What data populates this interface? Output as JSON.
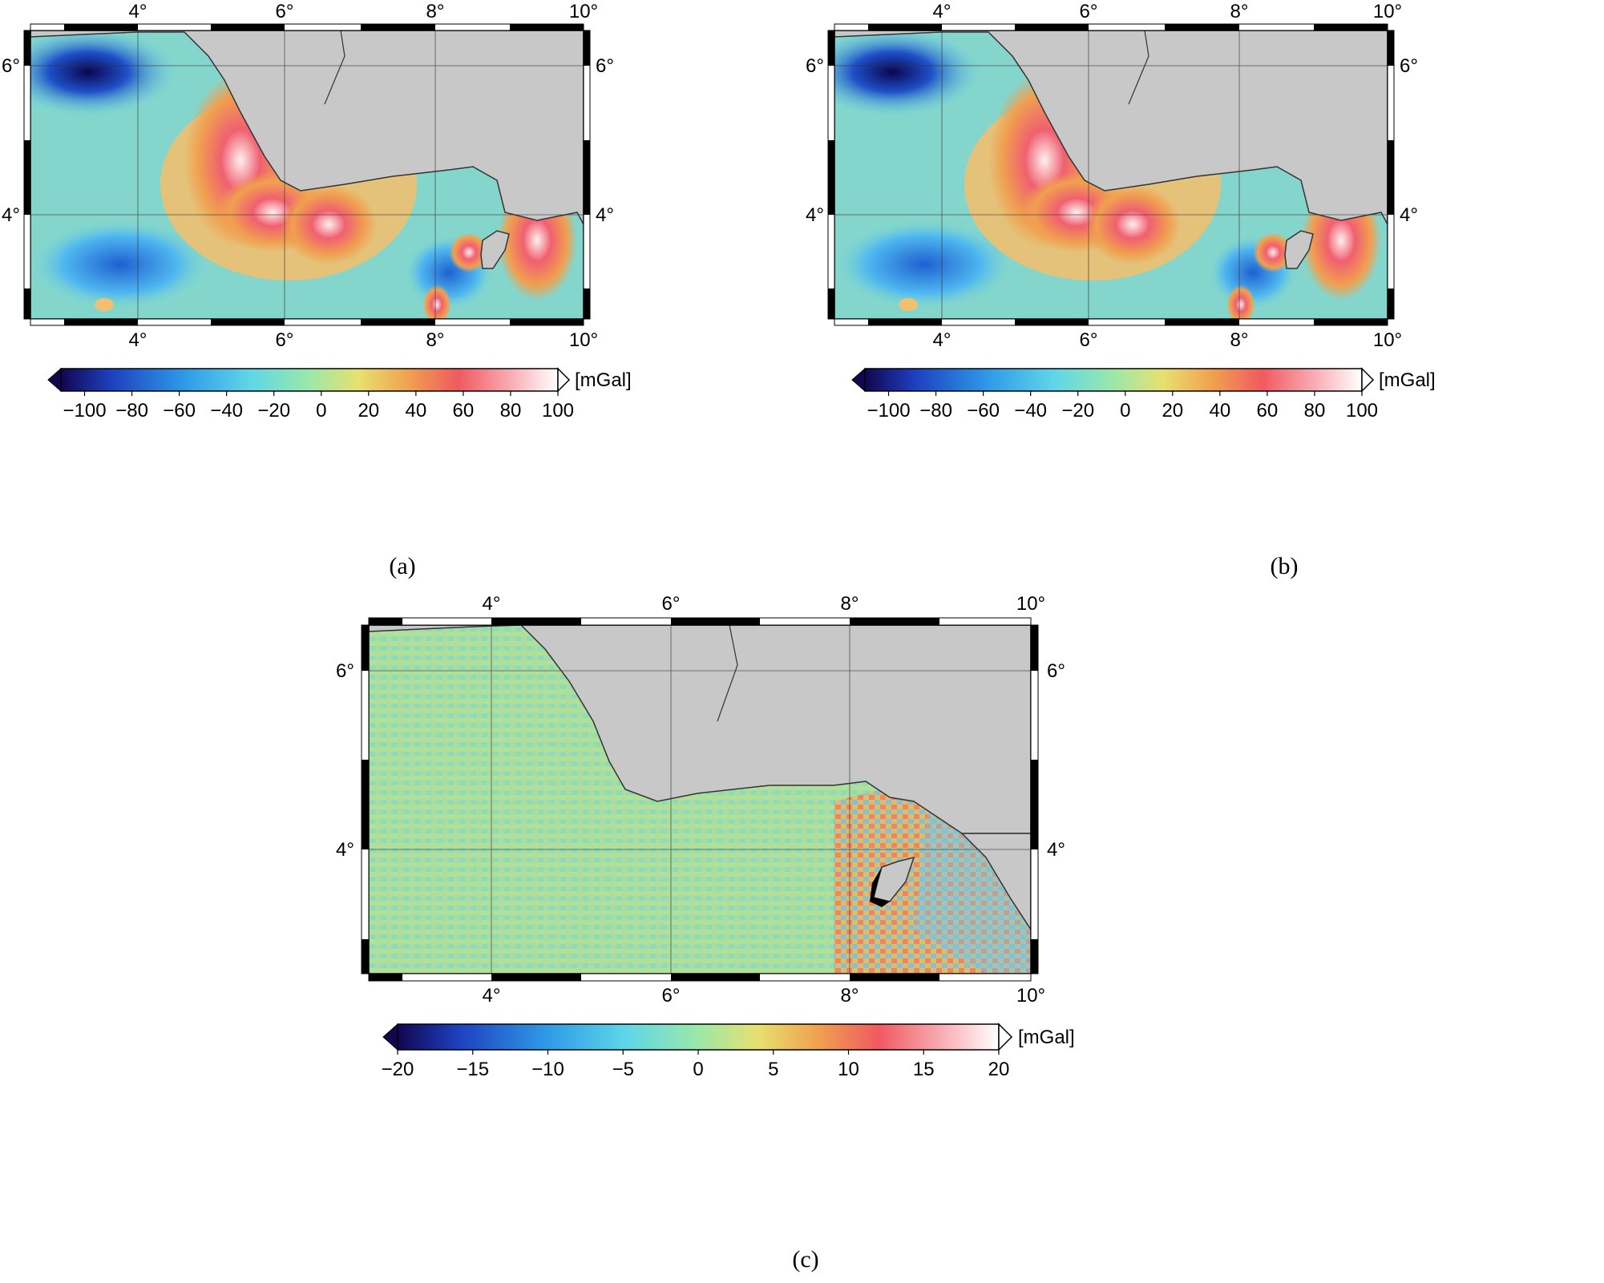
{
  "panels": [
    {
      "id": "a",
      "caption": "(a)",
      "x_ticks": [
        "4°",
        "6°",
        "8°",
        "10°"
      ],
      "y_ticks": [
        "6°",
        "4°"
      ],
      "colorbar": {
        "unit": "[mGal]",
        "min": -110,
        "max": 100,
        "ticks": [
          "−100",
          "−80",
          "−60",
          "−40",
          "−20",
          "0",
          "20",
          "40",
          "60",
          "80",
          "100"
        ],
        "tick_values": [
          -100,
          -80,
          -60,
          -40,
          -20,
          0,
          20,
          40,
          60,
          80,
          100
        ]
      }
    },
    {
      "id": "b",
      "caption": "(b)",
      "x_ticks": [
        "4°",
        "6°",
        "8°",
        "10°"
      ],
      "y_ticks": [
        "6°",
        "4°"
      ],
      "colorbar": {
        "unit": "[mGal]",
        "min": -110,
        "max": 100,
        "ticks": [
          "−100",
          "−80",
          "−60",
          "−40",
          "−20",
          "0",
          "20",
          "40",
          "60",
          "80",
          "100"
        ],
        "tick_values": [
          -100,
          -80,
          -60,
          -40,
          -20,
          0,
          20,
          40,
          60,
          80,
          100
        ]
      }
    },
    {
      "id": "c",
      "caption": "(c)",
      "x_ticks": [
        "4°",
        "6°",
        "8°",
        "10°"
      ],
      "y_ticks": [
        "6°",
        "4°"
      ],
      "colorbar": {
        "unit": "[mGal]",
        "min": -20,
        "max": 20,
        "ticks": [
          "−20",
          "−15",
          "−10",
          "−5",
          "0",
          "5",
          "10",
          "15",
          "20"
        ],
        "tick_values": [
          -20,
          -15,
          -10,
          -5,
          0,
          5,
          10,
          15,
          20
        ]
      }
    }
  ],
  "map": {
    "lon_range": [
      2.5,
      10
    ],
    "lat_range": [
      2.6,
      6.5
    ],
    "land_color": "#c8c8c8",
    "coast_color": "#333333"
  },
  "colors": {
    "deep_negative": "#1a0a6b",
    "negative": "#2f7fe0",
    "neutral": "#8fe0b8",
    "positive": "#f0c060",
    "high": "#f05060",
    "extreme": "#ffffff"
  }
}
